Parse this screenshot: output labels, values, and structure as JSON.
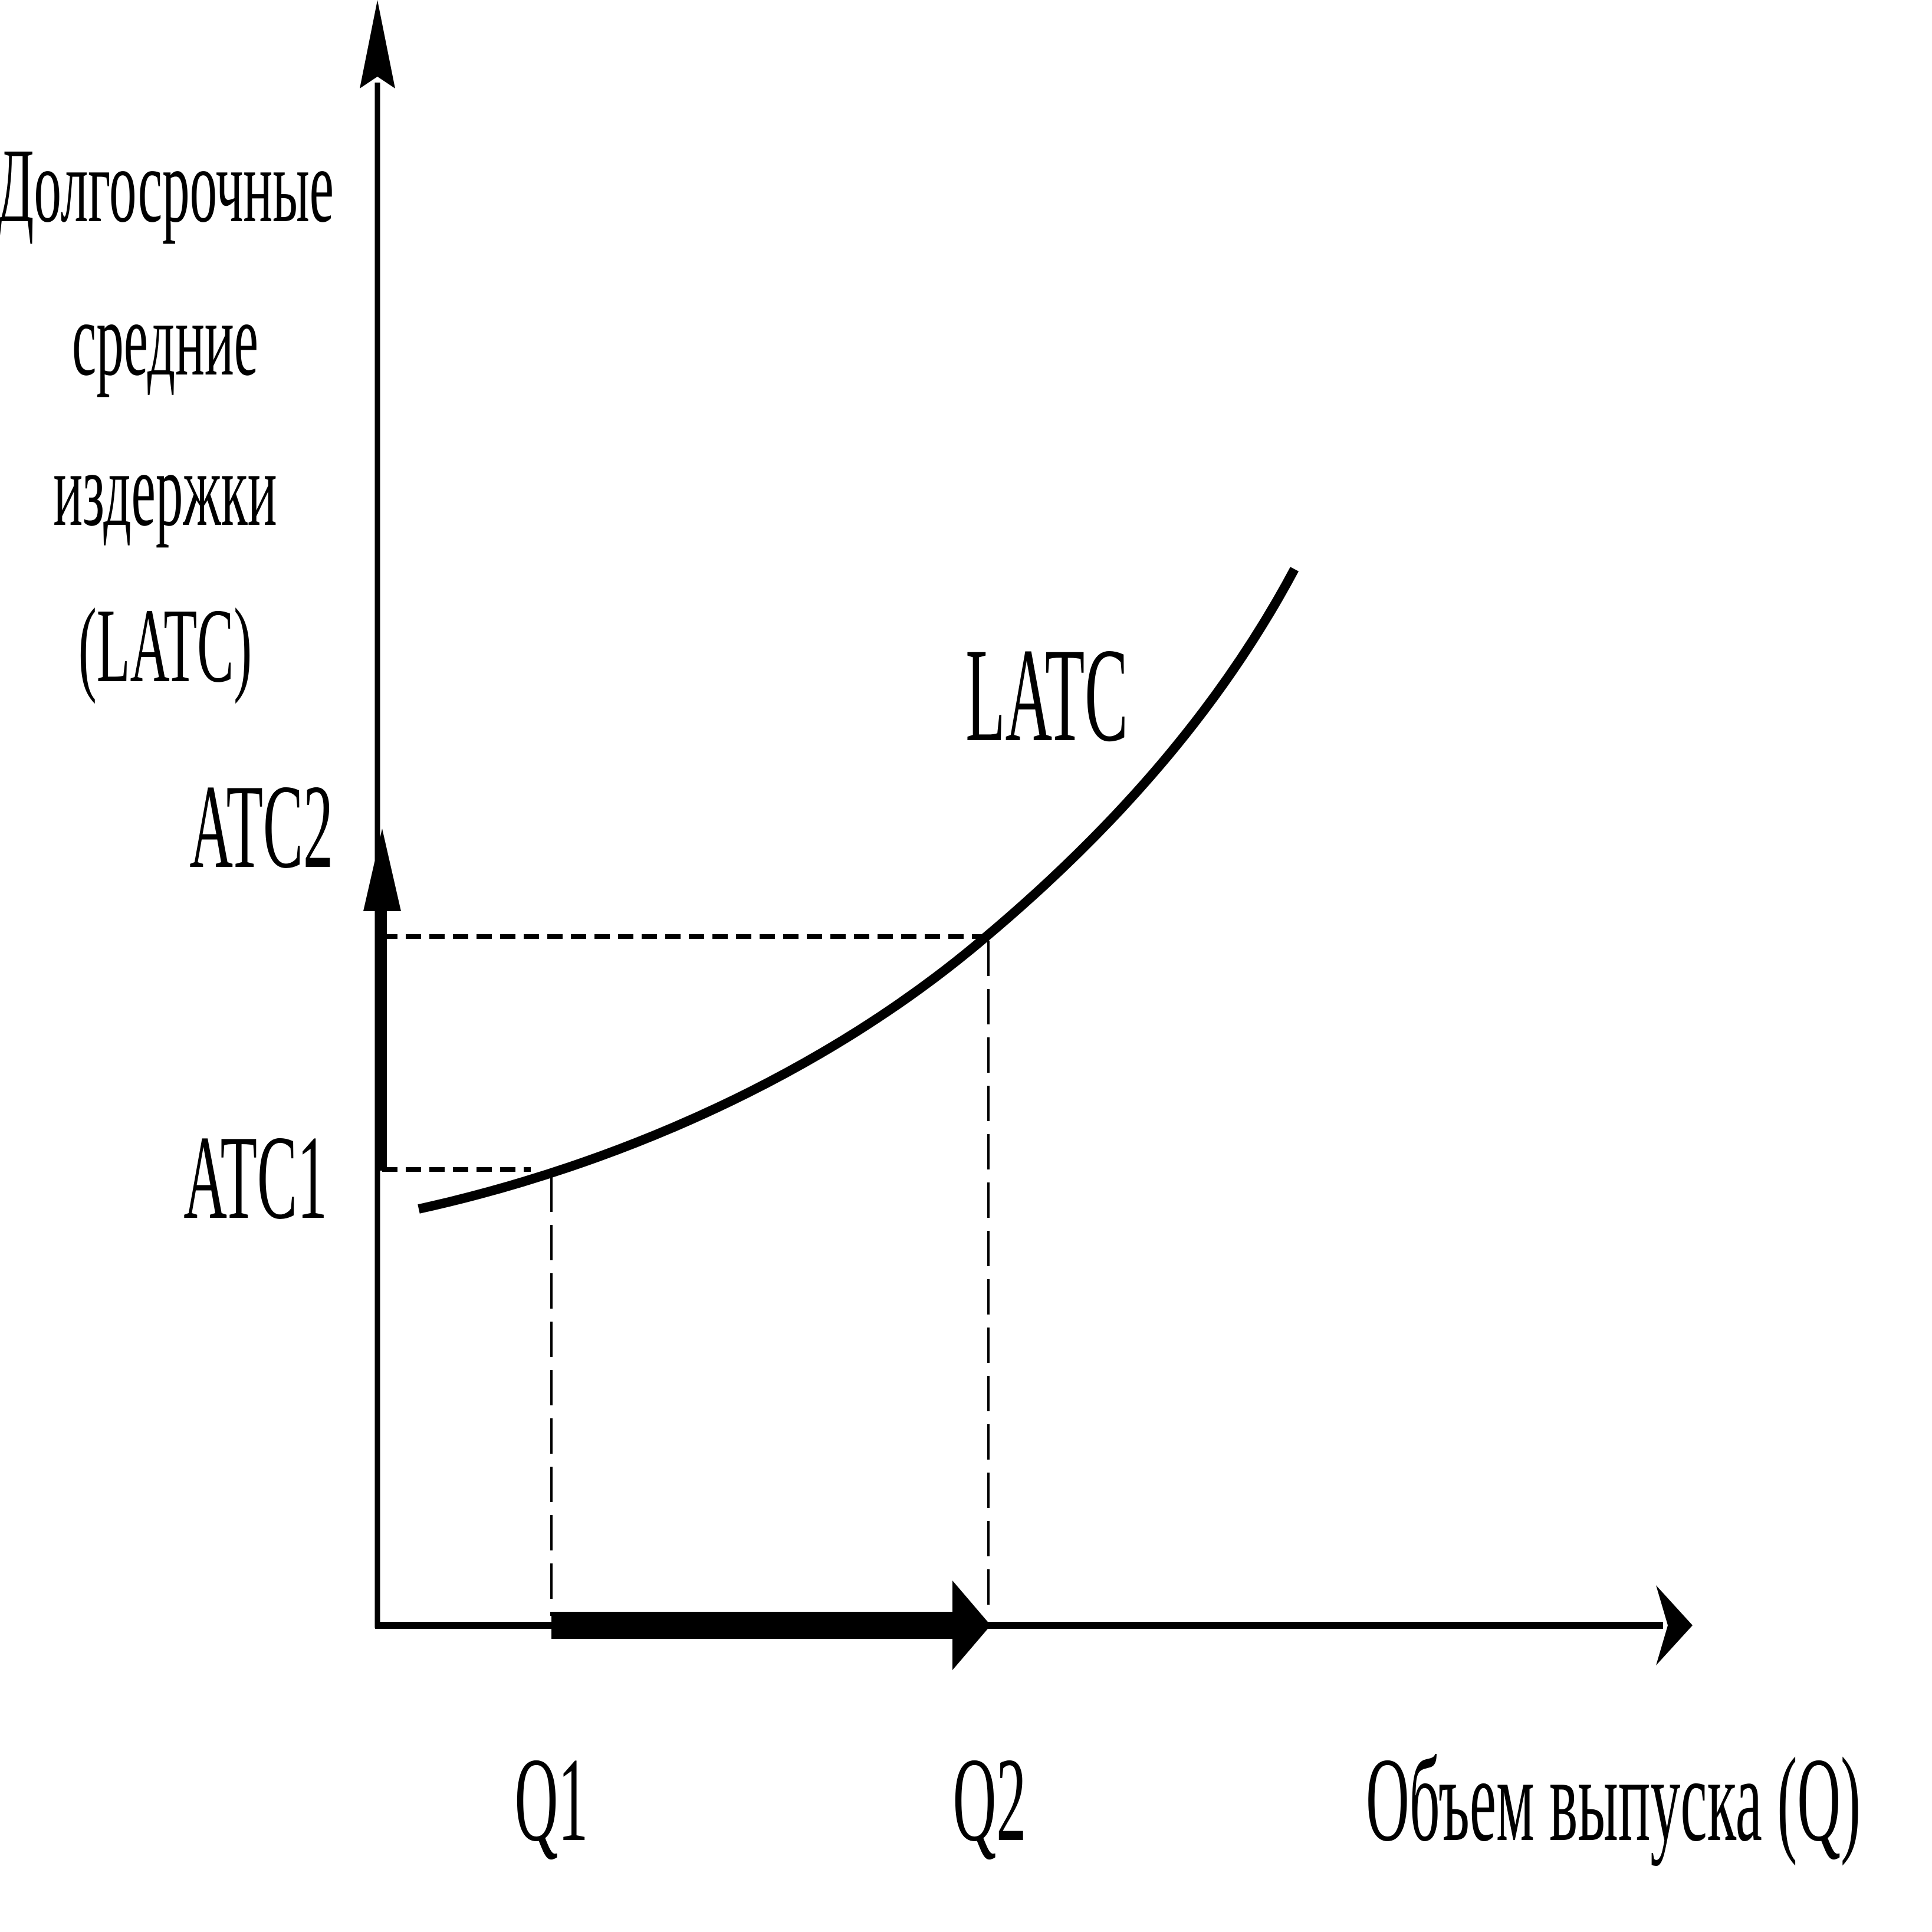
{
  "axes": {
    "y_label_lines": [
      "Долгосрочные",
      "средние",
      "издержки",
      "(LATC)"
    ],
    "x_label": "Объем выпуска (Q)"
  },
  "ticks": {
    "y": [
      "ATC1",
      "ATC2"
    ],
    "x": [
      "Q1",
      "Q2"
    ]
  },
  "curve": {
    "label": "LATC"
  },
  "colors": {
    "ink": "#000000",
    "background": "#ffffff"
  }
}
